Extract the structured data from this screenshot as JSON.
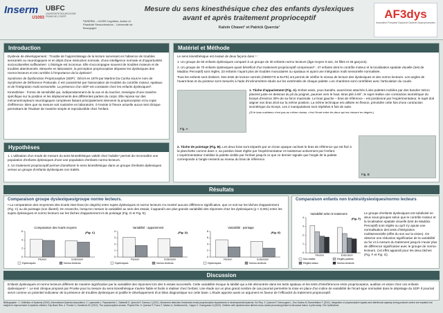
{
  "header": {
    "logo1": "Inserm",
    "logo1_sub": "U1093",
    "logo2": "UBFC",
    "logo2_sub": "UNIVERSITÉ BOURGOGNE FRANCHE-COMTÉ",
    "affiliation": "¹INSERM – U1093 Cognition, Action et Plasticité Sensorimotrice – Université de Bourgogne",
    "title": "Mesure du sens kinesthésique chez des enfants dyslexiques avant et après traitement proprioceptif",
    "authors": "Kalvin Chavet¹ et Patrick Quercia¹",
    "logo3": "AF3dys",
    "logo3_sub": "Association Française Dyspraxie Dyslexie Dysproprioception"
  },
  "introduction": {
    "heading": "Introduction",
    "paragraphs": [
      "Dyslexie de développement : Trouble de l'apprentissage de la lecture survenant en l'absence de troubles sensoriels ou neurologiques et en dépit d'une instruction normale, d'une intelligence normale et d'opportunités socioculturelles suffisantes¹. L'étiologie est inconnue. Elle s'accompagne souvent de troubles moteurs et de troubles attentionnels. Mesurée en laboratoire, la perception proprioceptive dépasse les dyslexiques des normo-lecteurs et est corrélée à l'importance de la dyslexie².",
      "Syndrome de Dysfonction Proprioceptive (SDP) : Décrit en 1979 par Martins Da Cunha sous le nom de Syndrome de Déficience Posturale, il est caractérisé par l'association de troubles du contrôle moteur, spatiaux et de l'intégration multi sensorielle. La présence d'un SDP est constante chez les enfants dyslexiques³.",
      "Kinesthésie : Forme de sensibilité qui, indépendamment de la vue et du toucher, renseigne d'une manière spécifique sur la position et les déplacements des différentes parties du corps. Elle repose sur des mécanorécepteurs neurologiques complexes faisant principalement intervenir la proprioception et la copie d'efférence. Bien que sa mesure soit routinière en laboratoire, il n'existe à l'heure actuelle aucun test clinique permettant de l'évaluer de manière simple et reproductible chez l'enfant."
    ]
  },
  "hypotheses": {
    "heading": "Hypothèses",
    "items": [
      "1. L'utilisation d'un mode de mesure du sens kinesthésique validé chez l'adulte⁴ permet de reconnaître une population d'enfants dyslexiques d'une une population d'enfants normo-lecteurs.",
      "2. Un traitement proprioceptif permet d'améliorer le sens kinesthésique dans un groupe d'enfants dyslexiques versus un groupe d'enfants dyslexiques non traités."
    ]
  },
  "methode": {
    "heading": "Matériel et Méthode",
    "paragraphs": [
      "Le sens kinesthésique est évalué de deux façons dans ⁴ :",
      "1. Un groupe de 50 enfants dyslexiques comparé à un groupe de 30 enfants normo lecteurs (âge moyen 9 ans, 34 filles et 46 garçons).",
      "2. Un groupe de 70 enfants dyslexiques ayant bénéficié d'un traitement proprioceptif comprenant⁵ : 47 enfants dont le contrôle moteur et la localisation spatiale visuelle (test de Maddox Perceptif) sont réglés, 23 enfants n'ayant plus de troubles musculaires ou spatiaux et ayant une intégration multi sensorielle normalisée.",
      "Tous les enfants sont droitiers. Des tests de lecture normés (ODEDYS & ELFE) ont permis de vérifier le niveau de lecture des dyslexiques et des normo lecteurs. Les angles de l'avant-bras et du pointeur sont mesurés à l'aide d'inclinomètres situés sur les extrémités de chaque palette. Les chambres sont contrôlées avec l'articulation du coude."
    ],
    "task1_title": "1. Tâche d'appariement (Fig. A).",
    "task1_text": "Enfant assis, yeux bandés, avant-bras attachés à des palettes mobiles par des bandes Velcro placées juste en dessous du pli du poignet, paumes vers le haut. Bras plié à 90°, le sujet réalise une contraction isométrique du biceps d'environ 30% de sa force maximale. Le bras gauche – bras de référence – est positionné par l'expérimentateur, le sujet doit aligner son bras droit sur la même position. La même technique est utilisée en flexion, précédée cette fois d'une contraction isométrique du triceps. Les 2 manipulations sont répétées 5 fois de suite.",
    "task1_note": "(Si le bras maintenu n'est pas au même niveau, c'est l'écart entre les deux qui est mesuré en degrés.)",
    "task2_title": "2. Tâche de pointage (Fig. B).",
    "task2_text": "Les deux bras sont séparés par un écran opaque cachant le bras de référence qui est fixé à la planchette comme dans 1, sa position étant réglée par l'expérimentateur et maintenue activement par l'enfant. L'expérimentateur mobilise la palette visible par l'enfant jusqu'à ce que ce dernier signale que l'angle de la palette corresponde à l'angle ressenti au niveau du bras de référence.",
    "fig_a": "Fig. A",
    "fig_b": "Fig. B"
  },
  "resultats": {
    "heading": "Résultats",
    "left": {
      "title": "Comparaison groupe dyslexiques/groupe normo lecteurs.",
      "text": "• La comparaison des moyennes des écarts inter-bras (en degrés) entre sujets dyslexiques et normo lecteurs n'a montré aucune différence significative, que ce soit sur les tâches d'appariement (Fig. C) ou de pointage (non illustré). En revanche, lorsqu'on mesure la variabilité au sein des essais, il apparaît une plus grande variabilité des réponses chez les dyslexiques (p < 0,001) entre les sujets dyslexiques et normo lecteurs sur les tâches d'appariement et de pointage (Fig. D et Fig. E).",
      "figures": [
        {
          "type": "bar",
          "title": "Comparaison des écarts moyens",
          "label": "(Fig. C)",
          "categories": [
            "Flexion",
            "Extension"
          ],
          "series": [
            {
              "name": "Dyslexiques",
              "color": "#f4f4f4",
              "values": [
                4.2,
                3.8
              ]
            },
            {
              "name": "Normo-lecteurs",
              "color": "#8a8f96",
              "values": [
                3.9,
                3.5
              ]
            }
          ],
          "ylim": [
            0,
            6
          ],
          "yticks": [
            0,
            2,
            4,
            6
          ]
        },
        {
          "type": "bar",
          "title": "Variabilité : appariement",
          "label": "(Fig. D)",
          "categories": [
            "Flexion",
            "Extension"
          ],
          "series": [
            {
              "name": "Dyslexiques",
              "color": "#f4f4f4",
              "values": [
                3.1,
                2.9
              ]
            },
            {
              "name": "Normo-lecteurs",
              "color": "#8a8f96",
              "values": [
                1.8,
                1.6
              ]
            }
          ],
          "ylim": [
            0,
            4
          ],
          "yticks": [
            0,
            1,
            2,
            3,
            4
          ]
        },
        {
          "type": "bar",
          "title": "Variabilité : pointage",
          "label": "(Fig. E)",
          "categories": [
            "Flexion",
            "Extension"
          ],
          "series": [
            {
              "name": "Dyslexiques",
              "color": "#f4f4f4",
              "values": [
                5.4,
                4.9
              ]
            },
            {
              "name": "Normo-lecteurs",
              "color": "#8a8f96",
              "values": [
                3.2,
                2.8
              ]
            }
          ],
          "ylim": [
            0,
            8
          ],
          "yticks": [
            0,
            2,
            4,
            6,
            8
          ]
        }
      ]
    },
    "right": {
      "title": "Comparaison enfants non traités/dyslexiques/normo lecteurs",
      "text": "Le groupe d'enfants dyslexiques est subdivisé en deux sous-groupes selon que le contrôle moteur et la localisation spatiale visuelle (test de Maddox Perceptif) sont réglés ou qu'il s'y ajoute une normalisation des tests d'intégration multisensorielle (effet du son sur la vision). On observe une réduction significative de la variabilité au fur et à mesure du traitement jusqu'à n'avoir plus de différence significative avec le groupe de normo-lecteurs. Cet effet apparaît pour les deux tâches (Fig. F et Fig. G).",
      "figure": {
        "type": "bar",
        "title": "Variabilité selon le traitement",
        "label": "(Fig. F)",
        "categories": [
          "Flexion",
          "Extension"
        ],
        "series": [
          {
            "name": "Non traités",
            "color": "#f4f4f4",
            "values": [
              3.1,
              2.9
            ]
          },
          {
            "name": "Réglés partiels",
            "color": "#b9bec4",
            "values": [
              2.4,
              2.2
            ]
          },
          {
            "name": "Réglés totaux",
            "color": "#6f757c",
            "values": [
              1.9,
              1.7
            ]
          },
          {
            "name": "Normo-lecteurs",
            "color": "#2f3338",
            "values": [
              1.8,
              1.6
            ]
          }
        ],
        "ylim": [
          0,
          4
        ],
        "yticks": [
          0,
          1,
          2,
          3,
          4
        ]
      }
    }
  },
  "discussion": {
    "heading": "Discussion",
    "text": "Enfants dyslexiques et normo lecteurs diffèrent de manière significative par la variabilité des réponses lors des 5 essais successifs. Cette variabilité évoque la labilité qui a été démontrée dans les tests spatiaux et les tests d'interférences entre proprioception, audition et vision chez ces enfants dyslexiques⁶·⁷. Le test clinique proposé par Proske pour la mesure du sens kinesthésique s'avère fiable et facile à réaliser chez l'enfant. Une étude sur un plus grand nombre de cas pourrait permettre la mise en place d'un indice de variabilité de l'écart-type normalisé dans le dépistage du SDP. Il pourrait servir comme un potentiel indicateur de la présence de troubles dyslexiques et justifie le développement d'un bilan diagnostique sur cette base. L'étude apporte aussi un argument en faveur de l'efficacité du traitement proprioceptif."
  },
  "bibliography": "Bibliographie : 1. Définition of Dyslexia (2002), International Dyslexia Association. 2. Laprevotte J, Papaxanthis C, Saltarelli S, Quercia P, Gaveau J (2021). Movement detection thresholds reveal proprioceptive impairments in developmental dyslexia. Sci Rep. 3. Quercia P, Demougeot L, Dos Santos M, Bonnetblanc F (2011). Integration of proprioceptive signals and attentional capacity during postural control are impaired but subject to improvement in dyslexic children. Exp Brain Res. 4. Proske U, Gandevia SC (2012). The proprioceptive senses. Physiol Rev. 5. Quercia P, Pozzo T, Marino A, Guillemant AL, Cappe C, Gueugneau N (2020). Children with dyslexia have altered cross-modal processing linked to binocular fusion. A pilot study. Clin Ophthalmol."
}
